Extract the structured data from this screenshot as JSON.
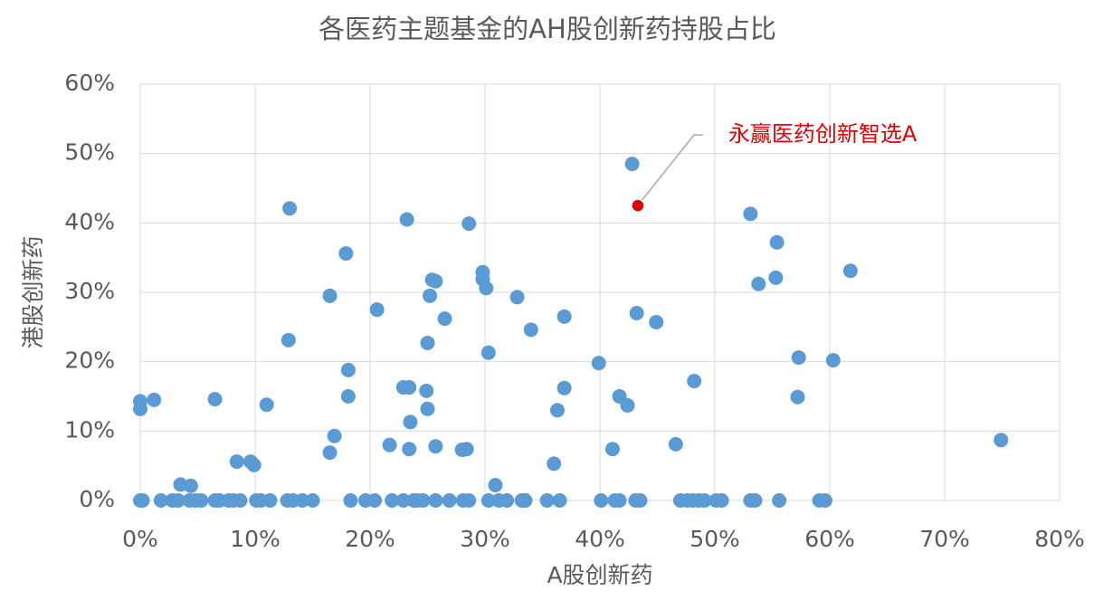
{
  "chart_data": {
    "type": "scatter",
    "title": "各医药主题基金的AH股创新药持股占比",
    "x_label": "A股创新药",
    "y_label": "港股创新药",
    "color": "#5b9bd5",
    "grid": true,
    "xlim": [
      0,
      80
    ],
    "ylim": [
      0,
      60
    ],
    "xticks": [
      {
        "value": 0,
        "label": "0%"
      },
      {
        "value": 10,
        "label": "10%"
      },
      {
        "value": 20,
        "label": "20%"
      },
      {
        "value": 30,
        "label": "30%"
      },
      {
        "value": 40,
        "label": "40%"
      },
      {
        "value": 50,
        "label": "50%"
      },
      {
        "value": 60,
        "label": "60%"
      },
      {
        "value": 70,
        "label": "70%"
      },
      {
        "value": 80,
        "label": "80%"
      }
    ],
    "yticks": [
      {
        "value": 0,
        "label": "0%"
      },
      {
        "value": 10,
        "label": "10%"
      },
      {
        "value": 20,
        "label": "20%"
      },
      {
        "value": 30,
        "label": "30%"
      },
      {
        "value": 40,
        "label": "40%"
      },
      {
        "value": 50,
        "label": "50%"
      },
      {
        "value": 60,
        "label": "60%"
      }
    ],
    "x": [
      0,
      0,
      1.2,
      0,
      0.2,
      1.8,
      2.8,
      3.3,
      3.5,
      4.4,
      4.3,
      4.8,
      5.3,
      6.5,
      6.5,
      6.9,
      7.7,
      8.1,
      8.7,
      8.4,
      9.6,
      9.9,
      10.1,
      10.5,
      11.3,
      11.0,
      13.0,
      12.9,
      12.8,
      13.3,
      14.1,
      15.0,
      16.5,
      16.9,
      16.5,
      17.9,
      18.1,
      18.1,
      18.3,
      19.6,
      20.4,
      20.6,
      21.7,
      21.9,
      22.9,
      23.2,
      22.9,
      23.4,
      23.5,
      23.4,
      23.8,
      24.1,
      24.6,
      24.9,
      25.0,
      25.0,
      25.2,
      25.4,
      25.7,
      25.7,
      25.7,
      26.9,
      26.5,
      28.0,
      28.4,
      28.6,
      28.1,
      28.6,
      29.8,
      29.8,
      30.1,
      30.3,
      30.9,
      30.3,
      31.2,
      31.9,
      32.8,
      33.2,
      33.5,
      34.0,
      35.4,
      36.5,
      36.0,
      36.3,
      36.9,
      36.9,
      39.9,
      40.1,
      41.1,
      41.7,
      41.3,
      41.7,
      42.4,
      42.8,
      43.2,
      43.1,
      43.5,
      44.9,
      46.6,
      47.0,
      47.6,
      48.1,
      48.6,
      49.1,
      48.2,
      50.1,
      50.6,
      53.1,
      53.1,
      53.5,
      53.8,
      55.4,
      55.3,
      55.6,
      57.3,
      57.2,
      59.1,
      59.6,
      60.3,
      61.8,
      74.9
    ],
    "values": [
      14.3,
      13.2,
      14.5,
      0,
      0,
      0,
      0,
      0,
      2.3,
      2.1,
      0,
      0,
      0,
      14.6,
      0,
      0,
      0,
      0,
      0,
      5.6,
      5.6,
      5.1,
      0,
      0,
      0,
      13.8,
      42.1,
      23.1,
      0,
      0,
      0,
      0,
      29.5,
      9.3,
      6.9,
      35.6,
      18.8,
      15.0,
      0,
      0,
      0,
      27.5,
      8.0,
      0,
      0,
      40.5,
      16.3,
      16.3,
      11.3,
      7.4,
      0,
      0,
      0,
      15.8,
      13.2,
      22.7,
      29.5,
      31.8,
      31.6,
      7.8,
      0,
      0,
      26.2,
      7.3,
      7.4,
      39.9,
      0,
      0,
      32.9,
      31.9,
      30.6,
      21.3,
      2.2,
      0,
      0,
      0,
      29.3,
      0,
      0,
      24.6,
      0,
      0,
      5.3,
      13.0,
      26.5,
      16.2,
      19.8,
      0,
      7.4,
      15.0,
      0,
      0,
      13.7,
      48.5,
      27.0,
      0,
      0,
      25.7,
      8.1,
      0,
      0,
      0,
      0,
      0,
      17.2,
      0,
      0,
      41.3,
      0,
      0,
      31.2,
      37.2,
      32.1,
      0,
      20.6,
      14.9,
      0,
      0,
      20.2,
      33.1,
      8.7
    ],
    "highlight": {
      "label": "永赢医药创新智选A",
      "x": 43.3,
      "y": 42.5,
      "color": "#e00000"
    }
  }
}
